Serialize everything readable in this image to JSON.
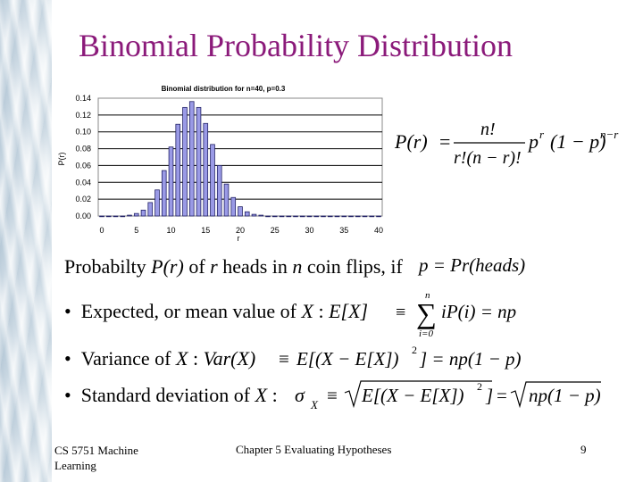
{
  "slide": {
    "title": "Binomial Probability Distribution",
    "intro_prefix": "Probabilty ",
    "intro_pr": "P(r)",
    "intro_of": " of ",
    "intro_r": "r",
    "intro_heads_in": " heads in ",
    "intro_n": "n",
    "intro_coin_flips": " coin flips, if ",
    "bullets": [
      {
        "text": "Expected, or mean value of ",
        "var": "X",
        "colon": " : ",
        "expr": "E[X]"
      },
      {
        "text": "Variance of ",
        "var": "X",
        "colon": " : ",
        "expr": "Var(X)"
      },
      {
        "text": "Standard deviation of ",
        "var": "X",
        "colon": " : "
      }
    ],
    "bullet_symbol": "•"
  },
  "formula": {
    "lhs": "P(r)",
    "eq": "=",
    "numerator": "n!",
    "denominator": "r!(n − r)!",
    "p_r": "p",
    "sup_r": "r",
    "one_minus_p": "(1 − p)",
    "sup_n_minus_r": "n−r",
    "heads_def": "p = Pr(heads)",
    "mean_rhs": "iP(i) = np",
    "sum_upper": "n",
    "sum_lower": "i=0",
    "equiv": "≡",
    "sum_symbol": "∑",
    "var_rhs": "E[(X − E[X])",
    "var_sup": "2",
    "var_tail": "] = np(1 − p)",
    "sigma": "σ",
    "sigma_sub": "X",
    "sd_root1": "E[(X − E[X])",
    "sd_sup": "2",
    "sd_root1_tail": "]",
    "sd_eq": "=",
    "sd_root2": "np(1 − p)"
  },
  "footer": {
    "course_line1": "CS 5751 Machine",
    "course_line2": "Learning",
    "chapter": "Chapter 5  Evaluating Hypotheses",
    "page": "9"
  },
  "colors": {
    "title": "#8b1a7a",
    "bar_fill": "#9a9ae6",
    "bar_dark": "#222266"
  },
  "chart_data": {
    "type": "bar",
    "title": "Binomial distribution for n=40, p=0.3",
    "xlabel": "r",
    "ylabel": "P(r)",
    "xlim": [
      0,
      40
    ],
    "ylim": [
      0,
      0.14
    ],
    "xticks": [
      "0",
      "5",
      "10",
      "15",
      "20",
      "25",
      "30",
      "35",
      "40"
    ],
    "yticks": [
      "0.00",
      "0.02",
      "0.04",
      "0.06",
      "0.08",
      "0.10",
      "0.12",
      "0.14"
    ],
    "x": [
      0,
      1,
      2,
      3,
      4,
      5,
      6,
      7,
      8,
      9,
      10,
      11,
      12,
      13,
      14,
      15,
      16,
      17,
      18,
      19,
      20,
      21,
      22,
      23,
      24,
      25,
      26,
      27,
      28,
      29,
      30,
      31,
      32,
      33,
      34,
      35,
      36,
      37,
      38,
      39,
      40
    ],
    "values": [
      0.0,
      0.0,
      0.0,
      0.0,
      0.001,
      0.003,
      0.007,
      0.016,
      0.031,
      0.054,
      0.082,
      0.109,
      0.129,
      0.136,
      0.129,
      0.11,
      0.085,
      0.06,
      0.038,
      0.022,
      0.011,
      0.005,
      0.002,
      0.001,
      0.0,
      0.0,
      0.0,
      0.0,
      0.0,
      0.0,
      0.0,
      0.0,
      0.0,
      0.0,
      0.0,
      0.0,
      0.0,
      0.0,
      0.0,
      0.0,
      0.0
    ],
    "grid": true
  }
}
